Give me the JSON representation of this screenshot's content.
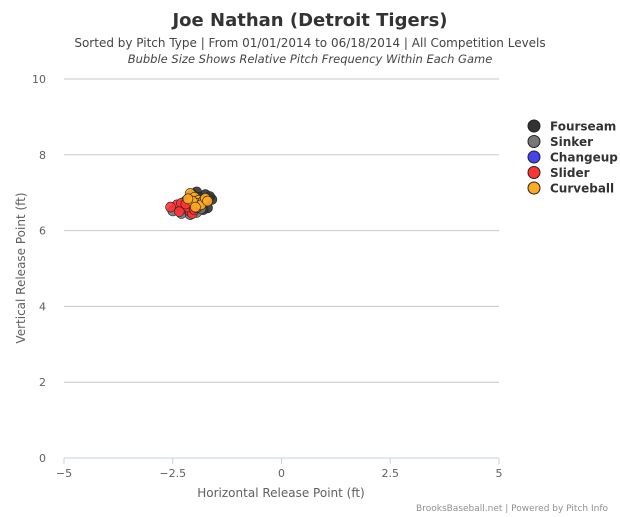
{
  "chart_data": {
    "type": "scatter",
    "title": "Joe Nathan (Detroit Tigers)",
    "subtitle": "Sorted by Pitch Type | From 01/01/2014 to 06/18/2014 | All Competition Levels",
    "subtitle2": "Bubble Size Shows Relative Pitch Frequency Within Each Game",
    "xlabel": "Horizontal Release Point (ft)",
    "ylabel": "Vertical Release Point (ft)",
    "xlim": [
      -5,
      5
    ],
    "ylim": [
      0,
      10
    ],
    "x_ticks": [
      {
        "value": -5,
        "label": "−5"
      },
      {
        "value": -2.5,
        "label": "−2.5"
      },
      {
        "value": 0,
        "label": "0"
      },
      {
        "value": 2.5,
        "label": "2.5"
      },
      {
        "value": 5,
        "label": "5"
      }
    ],
    "y_ticks": [
      {
        "value": 0,
        "label": "0"
      },
      {
        "value": 2,
        "label": "2"
      },
      {
        "value": 4,
        "label": "4"
      },
      {
        "value": 6,
        "label": "6"
      },
      {
        "value": 8,
        "label": "8"
      },
      {
        "value": 10,
        "label": "10"
      }
    ],
    "grid": "horizontal",
    "legend_position": "right",
    "credits": "BrooksBaseball.net | Powered by Pitch Info",
    "series": [
      {
        "name": "Fourseam",
        "color": "#333333",
        "points": [
          [
            -1.95,
            7.02
          ],
          [
            -1.75,
            6.95
          ],
          [
            -1.6,
            6.82
          ],
          [
            -2.1,
            6.9
          ],
          [
            -1.85,
            6.75
          ],
          [
            -1.7,
            6.6
          ],
          [
            -2.0,
            6.65
          ],
          [
            -1.9,
            6.88
          ],
          [
            -2.2,
            6.78
          ],
          [
            -1.8,
            6.55
          ],
          [
            -2.05,
            6.95
          ],
          [
            -1.65,
            6.9
          ]
        ]
      },
      {
        "name": "Sinker",
        "color": "#777777",
        "points": [
          [
            -2.5,
            6.52
          ],
          [
            -2.3,
            6.45
          ],
          [
            -1.95,
            6.48
          ],
          [
            -2.2,
            6.6
          ],
          [
            -1.85,
            6.58
          ],
          [
            -2.1,
            6.42
          ]
        ]
      },
      {
        "name": "Changeup",
        "color": "#4444ee",
        "points": []
      },
      {
        "name": "Slider",
        "color": "#ff3333",
        "points": [
          [
            -2.4,
            6.68
          ],
          [
            -2.25,
            6.58
          ],
          [
            -2.1,
            6.5
          ],
          [
            -2.05,
            6.45
          ],
          [
            -2.15,
            6.62
          ],
          [
            -2.3,
            6.72
          ],
          [
            -2.0,
            6.55
          ],
          [
            -2.35,
            6.5
          ],
          [
            -2.2,
            6.7
          ],
          [
            -2.55,
            6.62
          ],
          [
            -1.95,
            6.6
          ]
        ]
      },
      {
        "name": "Curveball",
        "color": "#ffaa22",
        "points": [
          [
            -2.1,
            6.98
          ],
          [
            -2.0,
            6.88
          ],
          [
            -1.9,
            6.8
          ],
          [
            -1.95,
            6.72
          ],
          [
            -1.8,
            6.78
          ],
          [
            -2.05,
            6.78
          ],
          [
            -1.85,
            6.68
          ],
          [
            -1.75,
            6.85
          ],
          [
            -1.7,
            6.78
          ],
          [
            -2.15,
            6.84
          ],
          [
            -1.98,
            6.62
          ]
        ]
      }
    ]
  }
}
